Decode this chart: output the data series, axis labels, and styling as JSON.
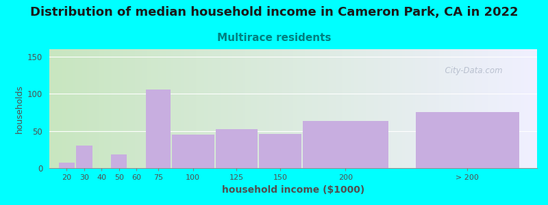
{
  "title": "Distribution of median household income in Cameron Park, CA in 2022",
  "subtitle": "Multirace residents",
  "xlabel": "household income ($1000)",
  "ylabel": "households",
  "bar_labels": [
    "20",
    "30",
    "40",
    "50",
    "60",
    "75",
    "100",
    "125",
    "150",
    "200",
    "> 200"
  ],
  "bar_values": [
    7,
    30,
    0,
    18,
    0,
    106,
    45,
    52,
    46,
    63,
    75
  ],
  "bar_color": "#c8aee0",
  "bar_widths": [
    10,
    10,
    10,
    10,
    10,
    15,
    25,
    25,
    25,
    50,
    60
  ],
  "bar_lefts": [
    15,
    25,
    35,
    45,
    55,
    65,
    80,
    105,
    130,
    155,
    220
  ],
  "xlim": [
    10,
    290
  ],
  "ylim": [
    0,
    160
  ],
  "yticks": [
    0,
    50,
    100,
    150
  ],
  "background_color": "#00ffff",
  "plot_bg_color_left": "#c8e6c0",
  "plot_bg_color_right": "#f0f0ff",
  "title_fontsize": 13,
  "subtitle_fontsize": 11,
  "subtitle_color": "#008080",
  "watermark": "  City-Data.com",
  "title_color": "#1a1a1a",
  "tick_color": "#505050",
  "label_color": "#505050"
}
